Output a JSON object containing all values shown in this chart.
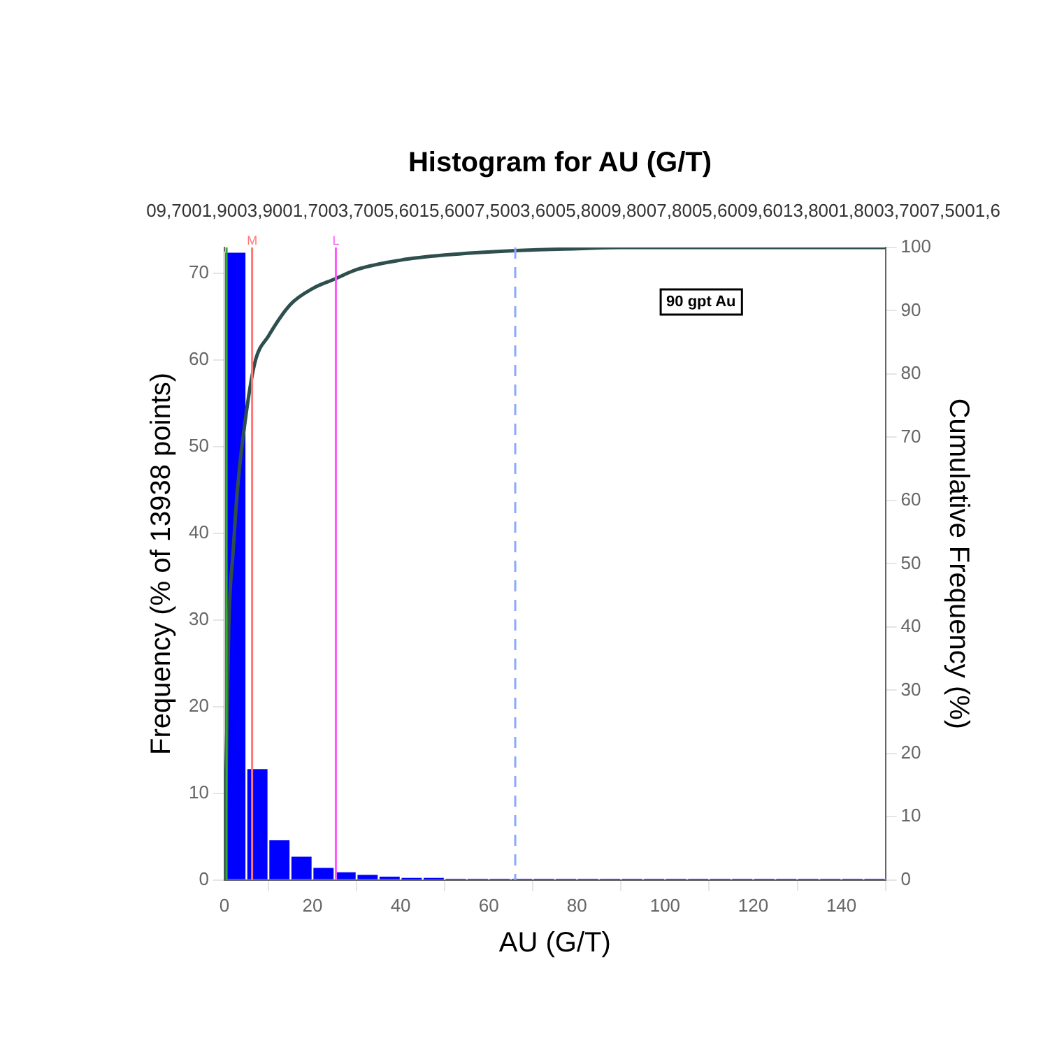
{
  "chart_data": {
    "type": "histogram",
    "title": "Histogram for AU (G/T)",
    "xlabel": "AU (G/T)",
    "ylabel": "Frequency (% of 13938 points)",
    "y2label": "Cumulative Frequency (%)",
    "bins": [
      0,
      5,
      10,
      15,
      20,
      25,
      30,
      35,
      40,
      45,
      50,
      55,
      60,
      65,
      70,
      75,
      80,
      85,
      90,
      95,
      100,
      105,
      110,
      115,
      120,
      125,
      130,
      135,
      140,
      145,
      150
    ],
    "values": [
      72.5,
      12.9,
      4.7,
      2.8,
      1.5,
      1.0,
      0.7,
      0.5,
      0.3,
      0.3,
      0.1,
      0.1,
      0.1,
      0.1,
      0.1,
      0.1,
      0.1,
      0.1,
      0.1,
      0.1,
      0.1,
      0.1,
      0.1,
      0.1,
      0.1,
      0.1,
      0.1,
      0.1,
      0.1,
      0.1
    ],
    "color": "#0000ff",
    "series": [
      {
        "type": "line",
        "axis": "y2",
        "color": "#2f4f4f",
        "x": [
          0,
          1,
          2,
          3,
          5,
          7,
          10,
          15,
          20,
          25,
          30,
          40,
          50,
          66,
          80,
          90,
          150
        ],
        "values": [
          0,
          40,
          52,
          62,
          74,
          82,
          86,
          91,
          93.5,
          95,
          96.5,
          98,
          98.8,
          99.5,
          99.8,
          100,
          100
        ]
      }
    ],
    "xlim": [
      0,
      150
    ],
    "xticks": [
      0,
      20,
      40,
      60,
      80,
      100,
      120,
      140
    ],
    "ylim": [
      0,
      73
    ],
    "yticks": [
      0,
      10,
      20,
      30,
      40,
      50,
      60,
      70
    ],
    "y2lim": [
      0,
      100
    ],
    "y2ticks": [
      0,
      10,
      20,
      30,
      40,
      50,
      60,
      70,
      80,
      90,
      100
    ],
    "legend": false,
    "ref_lines": [
      {
        "axis": "x",
        "value": 0.5,
        "label": null,
        "color": "#33aa33"
      },
      {
        "axis": "x",
        "value": 6.3,
        "label": "M",
        "color": "#ff7777"
      },
      {
        "axis": "x",
        "value": 25.3,
        "label": "L",
        "color": "#ff55ff"
      },
      {
        "axis": "x",
        "value": 66,
        "label": null,
        "color": "#88aaff",
        "line_style": "dashed"
      }
    ],
    "annotations": [
      "09,7001,9003,9001,7003,7005,6015,6007,5003,6005,8009,8007,8005,6009,6013,8001,8003,7007,5001,6",
      "90 gpt Au"
    ]
  }
}
